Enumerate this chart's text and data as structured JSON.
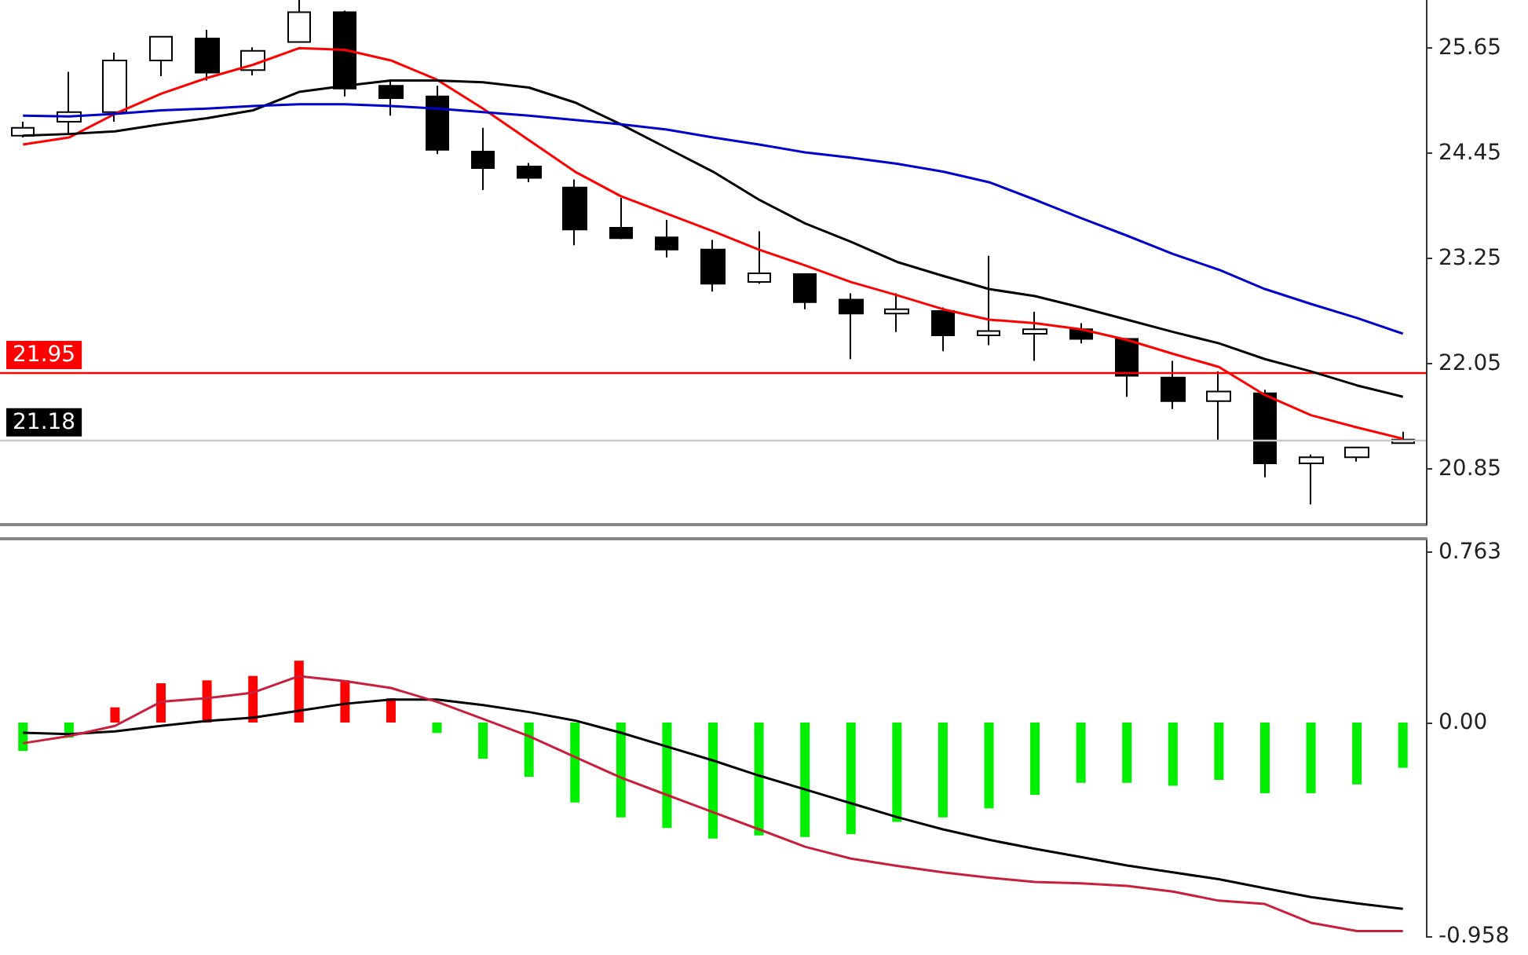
{
  "chart_data": [
    {
      "type": "candlestick",
      "categories": [
        null,
        null,
        null,
        null,
        null,
        null,
        null,
        null,
        null,
        null,
        null,
        null,
        null,
        null,
        null,
        null,
        null,
        null,
        null,
        null,
        null,
        null,
        null,
        null,
        null,
        null,
        null,
        null,
        null,
        null,
        null
      ],
      "ohlc": [
        [
          24.65,
          24.81,
          24.63,
          24.74
        ],
        [
          24.81,
          25.38,
          24.67,
          24.92
        ],
        [
          24.92,
          25.6,
          24.81,
          25.51
        ],
        [
          25.51,
          25.79,
          25.33,
          25.78
        ],
        [
          25.76,
          25.86,
          25.28,
          25.37
        ],
        [
          25.4,
          25.66,
          25.34,
          25.62
        ],
        [
          25.72,
          26.2,
          25.72,
          26.06
        ],
        [
          26.06,
          26.08,
          25.1,
          25.19
        ],
        [
          25.22,
          25.28,
          24.88,
          25.08
        ],
        [
          25.1,
          25.22,
          24.44,
          24.49
        ],
        [
          24.47,
          24.74,
          24.03,
          24.28
        ],
        [
          24.3,
          24.34,
          24.12,
          24.17
        ],
        [
          24.06,
          24.15,
          23.4,
          23.58
        ],
        [
          23.6,
          23.94,
          23.47,
          23.48
        ],
        [
          23.49,
          23.69,
          23.26,
          23.35
        ],
        [
          23.35,
          23.46,
          22.87,
          22.96
        ],
        [
          22.98,
          23.56,
          22.96,
          23.08
        ],
        [
          23.07,
          23.07,
          22.67,
          22.75
        ],
        [
          22.78,
          22.85,
          22.1,
          22.62
        ],
        [
          22.62,
          22.85,
          22.41,
          22.67
        ],
        [
          22.65,
          22.69,
          22.19,
          22.37
        ],
        [
          22.37,
          23.28,
          22.26,
          22.42
        ],
        [
          22.39,
          22.64,
          22.08,
          22.44
        ],
        [
          22.44,
          22.51,
          22.28,
          22.33
        ],
        [
          22.33,
          22.33,
          21.67,
          21.91
        ],
        [
          21.89,
          22.08,
          21.53,
          21.62
        ],
        [
          21.62,
          21.96,
          21.17,
          21.73
        ],
        [
          21.71,
          21.75,
          20.75,
          20.91
        ],
        [
          20.91,
          21.01,
          20.44,
          20.98
        ],
        [
          20.98,
          21.09,
          20.93,
          21.09
        ],
        [
          21.14,
          21.27,
          21.14,
          21.18
        ]
      ],
      "ylim": [
        20.21,
        26.2
      ],
      "yticks": [
        20.85,
        22.05,
        23.25,
        24.45,
        25.65
      ],
      "ref_lines": [
        {
          "axis": "y",
          "value": 21.95,
          "label": "21.95",
          "color": "#ff0000"
        },
        {
          "axis": "y",
          "value": 21.18,
          "label": "21.18",
          "color": "#c8c8c8"
        }
      ],
      "tick_labels": "y"
    },
    {
      "type": "line",
      "categories": [
        null,
        null,
        null,
        null,
        null,
        null,
        null,
        null,
        null,
        null,
        null,
        null,
        null,
        null,
        null,
        null,
        null,
        null,
        null,
        null,
        null,
        null,
        null,
        null,
        null,
        null,
        null,
        null,
        null,
        null,
        null
      ],
      "series": [
        {
          "color": "#ff0000",
          "values": [
            24.55,
            24.63,
            24.9,
            25.13,
            25.31,
            25.46,
            25.65,
            25.63,
            25.51,
            25.29,
            24.96,
            24.6,
            24.24,
            23.96,
            23.76,
            23.56,
            23.35,
            23.17,
            22.98,
            22.83,
            22.67,
            22.55,
            22.51,
            22.44,
            22.32,
            22.16,
            22.01,
            21.69,
            21.46,
            21.32,
            21.19
          ]
        },
        {
          "color": "#000000",
          "values": [
            24.65,
            24.67,
            24.7,
            24.78,
            24.85,
            24.94,
            25.15,
            25.22,
            25.28,
            25.28,
            25.26,
            25.2,
            25.03,
            24.78,
            24.51,
            24.24,
            23.92,
            23.65,
            23.44,
            23.21,
            23.05,
            22.9,
            22.82,
            22.69,
            22.55,
            22.41,
            22.28,
            22.1,
            21.96,
            21.8,
            21.67
          ]
        },
        {
          "color": "#0000cc",
          "values": [
            24.88,
            24.87,
            24.9,
            24.94,
            24.96,
            24.99,
            25.01,
            25.01,
            24.99,
            24.96,
            24.92,
            24.88,
            24.83,
            24.78,
            24.72,
            24.63,
            24.55,
            24.46,
            24.4,
            24.33,
            24.24,
            24.12,
            23.92,
            23.71,
            23.51,
            23.3,
            23.12,
            22.9,
            22.73,
            22.57,
            22.39
          ]
        }
      ],
      "ylim": [
        20.21,
        26.2
      ],
      "marker": "none",
      "tick_labels": false
    },
    {
      "type": "bar",
      "categories": [
        null,
        null,
        null,
        null,
        null,
        null,
        null,
        null,
        null,
        null,
        null,
        null,
        null,
        null,
        null,
        null,
        null,
        null,
        null,
        null,
        null,
        null,
        null,
        null,
        null,
        null,
        null,
        null,
        null,
        null,
        null
      ],
      "values": [
        -0.128,
        -0.068,
        0.068,
        0.176,
        0.189,
        0.209,
        0.277,
        0.189,
        0.108,
        -0.047,
        -0.162,
        -0.243,
        -0.358,
        -0.425,
        -0.473,
        -0.52,
        -0.506,
        -0.513,
        -0.5,
        -0.446,
        -0.425,
        -0.385,
        -0.324,
        -0.27,
        -0.27,
        -0.284,
        -0.257,
        -0.317,
        -0.317,
        -0.277,
        -0.203
      ],
      "colors": [
        "#00ee00",
        "#00ee00",
        "#ff0000",
        "#ff0000",
        "#ff0000",
        "#ff0000",
        "#ff0000",
        "#ff0000",
        "#ff0000",
        "#00ee00",
        "#00ee00",
        "#00ee00",
        "#00ee00",
        "#00ee00",
        "#00ee00",
        "#00ee00",
        "#00ee00",
        "#00ee00",
        "#00ee00",
        "#00ee00",
        "#00ee00",
        "#00ee00",
        "#00ee00",
        "#00ee00",
        "#00ee00",
        "#00ee00",
        "#00ee00",
        "#00ee00",
        "#00ee00",
        "#00ee00",
        "#00ee00"
      ],
      "ylim": [
        -0.958,
        0.824
      ],
      "yticks": [
        -0.958,
        {
          "value": 0,
          "label": "0.00"
        },
        0.763
      ],
      "tick_labels": "y"
    },
    {
      "type": "line",
      "categories": [
        null,
        null,
        null,
        null,
        null,
        null,
        null,
        null,
        null,
        null,
        null,
        null,
        null,
        null,
        null,
        null,
        null,
        null,
        null,
        null,
        null,
        null,
        null,
        null,
        null,
        null,
        null,
        null,
        null,
        null,
        null
      ],
      "series": [
        {
          "color": "#000000",
          "values": [
            -0.046,
            -0.052,
            -0.04,
            -0.015,
            0.007,
            0.022,
            0.053,
            0.084,
            0.103,
            0.103,
            0.078,
            0.047,
            0.009,
            -0.046,
            -0.108,
            -0.17,
            -0.238,
            -0.3,
            -0.362,
            -0.424,
            -0.479,
            -0.526,
            -0.566,
            -0.603,
            -0.641,
            -0.672,
            -0.703,
            -0.743,
            -0.783,
            -0.811,
            -0.836
          ]
        },
        {
          "color": "#c8203c",
          "values": [
            -0.093,
            -0.061,
            -0.015,
            0.093,
            0.109,
            0.134,
            0.208,
            0.186,
            0.155,
            0.093,
            0.016,
            -0.061,
            -0.155,
            -0.247,
            -0.325,
            -0.402,
            -0.479,
            -0.557,
            -0.61,
            -0.643,
            -0.672,
            -0.696,
            -0.715,
            -0.721,
            -0.733,
            -0.758,
            -0.799,
            -0.814,
            -0.898,
            -0.935,
            -0.935
          ]
        }
      ],
      "ylim": [
        -0.958,
        0.824
      ],
      "marker": "none",
      "tick_labels": false
    }
  ]
}
